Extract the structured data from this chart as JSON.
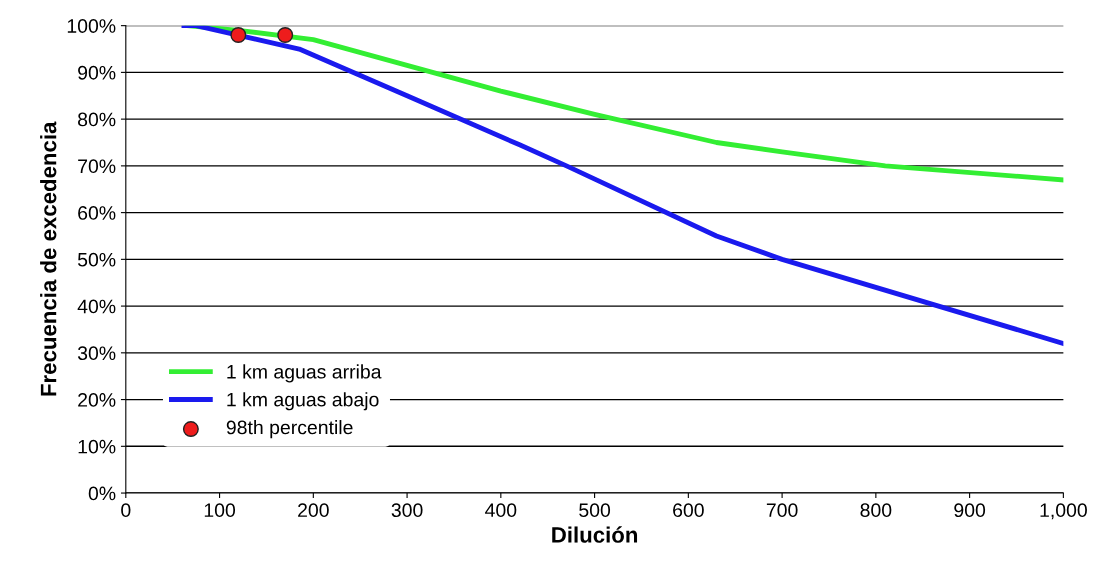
{
  "chart_data": {
    "type": "line",
    "xlabel": "Dilución",
    "ylabel": "Frecuencia de excedencia",
    "xlim": [
      0,
      1000
    ],
    "ylim": [
      0,
      100
    ],
    "xticks": [
      0,
      100,
      200,
      300,
      400,
      500,
      600,
      700,
      800,
      900,
      {
        "value": 1000,
        "label": "1,000"
      }
    ],
    "yticks": [
      {
        "value": 0,
        "label": "0%"
      },
      {
        "value": 10,
        "label": "10%"
      },
      {
        "value": 20,
        "label": "20%"
      },
      {
        "value": 30,
        "label": "30%"
      },
      {
        "value": 40,
        "label": "40%"
      },
      {
        "value": 50,
        "label": "50%"
      },
      {
        "value": 60,
        "label": "60%"
      },
      {
        "value": 70,
        "label": "70%"
      },
      {
        "value": 80,
        "label": "80%"
      },
      {
        "value": 90,
        "label": "90%"
      },
      {
        "value": 100,
        "label": "100%"
      }
    ],
    "grid": "y",
    "legend": "bottom left",
    "series": [
      {
        "name": "1 km aguas arriba",
        "color": "#33ee33",
        "x": [
          65,
          120,
          200,
          300,
          400,
          500,
          630,
          700,
          810,
          1000
        ],
        "values": [
          100,
          99,
          97,
          91.5,
          86,
          81,
          75,
          73,
          70,
          67
        ]
      },
      {
        "name": "1 km aguas abajo",
        "color": "#1a1aee",
        "x": [
          62,
          75,
          185,
          300,
          420,
          470,
          630,
          700,
          1000
        ],
        "values": [
          100,
          100,
          95,
          85,
          74.5,
          70,
          55,
          50,
          32
        ]
      },
      {
        "name": "98th percentile",
        "type": "scatter",
        "color": "#ee1c1c",
        "marker": "circle",
        "x": [
          120,
          170
        ],
        "values": [
          98,
          98
        ]
      }
    ]
  }
}
